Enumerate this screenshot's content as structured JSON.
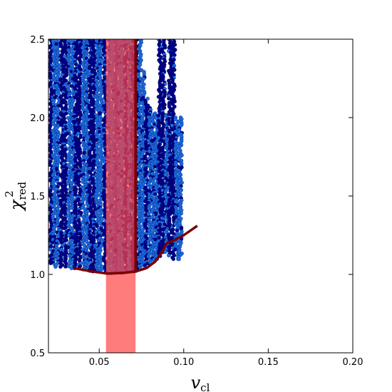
{
  "chart_data": {
    "type": "scatter",
    "title": "",
    "xlabel": "v",
    "xlabel_sub": "cl",
    "ylabel": "χ",
    "ylabel_sup": "2",
    "ylabel_sub": "red",
    "xlim": [
      0.02,
      0.2
    ],
    "ylim": [
      0.5,
      2.5
    ],
    "xticks": [
      0.05,
      0.1,
      0.15,
      0.2
    ],
    "xtick_labels": [
      "0.05",
      "0.10",
      "0.15",
      "0.20"
    ],
    "yticks": [
      0.5,
      1.0,
      1.5,
      2.0,
      2.5
    ],
    "ytick_labels": [
      "0.5",
      "1.0",
      "1.5",
      "2.0",
      "2.5"
    ],
    "grid": false,
    "legend": "none",
    "colors": {
      "dark_points": "#00008b",
      "medium_points": "#1e3fc8",
      "light_points": "#1a6fe6",
      "band_fill": "#ff4444",
      "curve": "#7a0000"
    },
    "band": {
      "x_range": [
        0.054,
        0.0715
      ]
    },
    "point_columns": [
      {
        "x": 0.0215,
        "ymin": 1.07,
        "ymax": 2.5,
        "tone": "dark"
      },
      {
        "x": 0.0235,
        "ymin": 1.05,
        "ymax": 2.5,
        "tone": "light"
      },
      {
        "x": 0.0255,
        "ymin": 1.06,
        "ymax": 2.5,
        "tone": "light"
      },
      {
        "x": 0.028,
        "ymin": 1.05,
        "ymax": 2.5,
        "tone": "dark"
      },
      {
        "x": 0.03,
        "ymin": 1.05,
        "ymax": 2.5,
        "tone": "dark"
      },
      {
        "x": 0.0325,
        "ymin": 1.05,
        "ymax": 2.5,
        "tone": "light"
      },
      {
        "x": 0.0345,
        "ymin": 1.04,
        "ymax": 2.5,
        "tone": "light"
      },
      {
        "x": 0.0365,
        "ymin": 1.04,
        "ymax": 2.5,
        "tone": "dark"
      },
      {
        "x": 0.0385,
        "ymin": 1.04,
        "ymax": 2.5,
        "tone": "dark"
      },
      {
        "x": 0.041,
        "ymin": 1.03,
        "ymax": 2.5,
        "tone": "light"
      },
      {
        "x": 0.043,
        "ymin": 1.03,
        "ymax": 2.5,
        "tone": "light"
      },
      {
        "x": 0.045,
        "ymin": 1.02,
        "ymax": 2.5,
        "tone": "dark"
      },
      {
        "x": 0.047,
        "ymin": 1.02,
        "ymax": 2.5,
        "tone": "dark"
      },
      {
        "x": 0.049,
        "ymin": 1.02,
        "ymax": 2.5,
        "tone": "light"
      },
      {
        "x": 0.051,
        "ymin": 1.02,
        "ymax": 2.5,
        "tone": "light"
      },
      {
        "x": 0.0535,
        "ymin": 1.02,
        "ymax": 2.5,
        "tone": "dark"
      },
      {
        "x": 0.056,
        "ymin": 1.02,
        "ymax": 2.5,
        "tone": "light"
      },
      {
        "x": 0.058,
        "ymin": 1.01,
        "ymax": 2.5,
        "tone": "light"
      },
      {
        "x": 0.06,
        "ymin": 1.01,
        "ymax": 2.5,
        "tone": "medium"
      },
      {
        "x": 0.062,
        "ymin": 1.01,
        "ymax": 2.5,
        "tone": "light"
      },
      {
        "x": 0.064,
        "ymin": 1.01,
        "ymax": 2.5,
        "tone": "light"
      },
      {
        "x": 0.066,
        "ymin": 1.02,
        "ymax": 2.5,
        "tone": "dark"
      },
      {
        "x": 0.068,
        "ymin": 1.02,
        "ymax": 2.5,
        "tone": "light"
      },
      {
        "x": 0.07,
        "ymin": 1.02,
        "ymax": 2.5,
        "tone": "dark"
      },
      {
        "x": 0.072,
        "ymin": 1.03,
        "ymax": 2.5,
        "tone": "dark"
      },
      {
        "x": 0.074,
        "ymin": 1.04,
        "ymax": 2.5,
        "tone": "light"
      },
      {
        "x": 0.076,
        "ymin": 1.05,
        "ymax": 2.3,
        "tone": "light"
      },
      {
        "x": 0.078,
        "ymin": 1.06,
        "ymax": 2.12,
        "tone": "dark"
      },
      {
        "x": 0.08,
        "ymin": 1.07,
        "ymax": 2.06,
        "tone": "light"
      },
      {
        "x": 0.082,
        "ymin": 1.08,
        "ymax": 2.02,
        "tone": "light"
      },
      {
        "x": 0.084,
        "ymin": 1.1,
        "ymax": 2.03,
        "tone": "light"
      },
      {
        "x": 0.086,
        "ymin": 1.12,
        "ymax": 2.5,
        "tone": "dark"
      },
      {
        "x": 0.088,
        "ymin": 1.14,
        "ymax": 2.5,
        "tone": "dark"
      },
      {
        "x": 0.09,
        "ymin": 1.14,
        "ymax": 2.02,
        "tone": "light"
      },
      {
        "x": 0.092,
        "ymin": 1.12,
        "ymax": 2.5,
        "tone": "dark"
      },
      {
        "x": 0.094,
        "ymin": 1.1,
        "ymax": 2.5,
        "tone": "dark"
      },
      {
        "x": 0.096,
        "ymin": 1.1,
        "ymax": 2.0,
        "tone": "light"
      },
      {
        "x": 0.098,
        "ymin": 1.1,
        "ymax": 2.0,
        "tone": "light"
      }
    ],
    "curve": [
      {
        "x": 0.035,
        "y": 1.04
      },
      {
        "x": 0.045,
        "y": 1.02
      },
      {
        "x": 0.055,
        "y": 1.005
      },
      {
        "x": 0.065,
        "y": 1.01
      },
      {
        "x": 0.072,
        "y": 1.02
      },
      {
        "x": 0.078,
        "y": 1.04
      },
      {
        "x": 0.083,
        "y": 1.08
      },
      {
        "x": 0.087,
        "y": 1.14
      },
      {
        "x": 0.09,
        "y": 1.2
      },
      {
        "x": 0.095,
        "y": 1.22
      },
      {
        "x": 0.1,
        "y": 1.25
      },
      {
        "x": 0.108,
        "y": 1.31
      }
    ],
    "vline": {
      "x": 0.0715,
      "y_range": [
        1.01,
        2.5
      ]
    }
  }
}
